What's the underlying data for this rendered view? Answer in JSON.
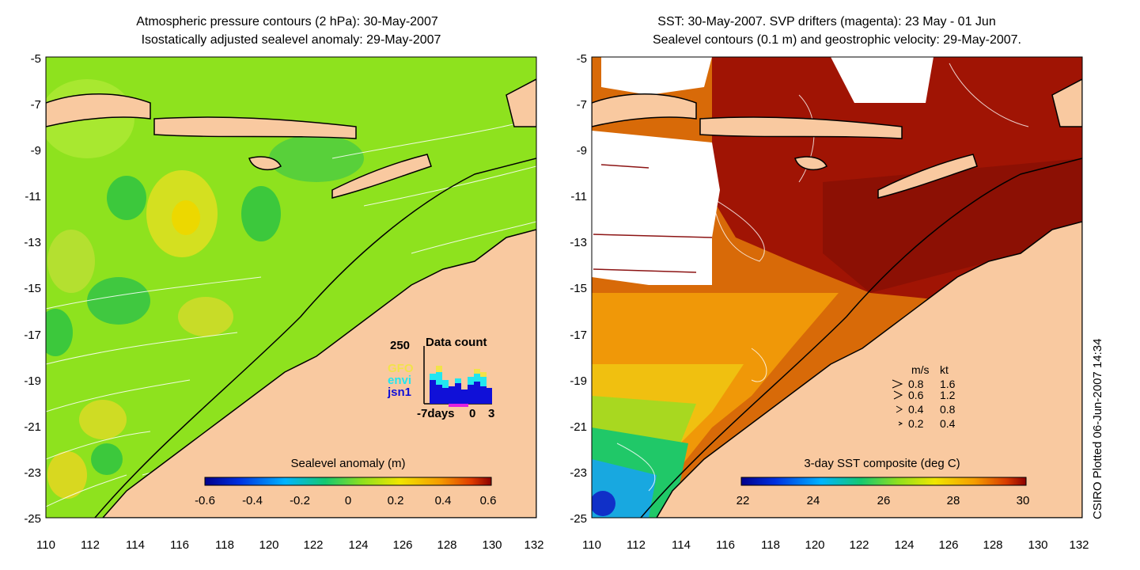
{
  "left_panel": {
    "title_line1": "Atmospheric pressure contours (2 hPa): 30-May-2007",
    "title_line2": "Isostatically adjusted sealevel anomaly: 29-May-2007",
    "colorbar": {
      "label": "Sealevel anomaly (m)",
      "ticks": [
        "-0.6",
        "-0.4",
        "-0.2",
        "0",
        "0.2",
        "0.4",
        "0.6"
      ]
    },
    "data_count": {
      "title": "Data count",
      "max_label": "250",
      "satellites": [
        {
          "name": "GFO",
          "color": "#f2e24a"
        },
        {
          "name": "envi",
          "color": "#22e6f0"
        },
        {
          "name": "jsn1",
          "color": "#1010d8"
        }
      ],
      "axis_left": "-7days",
      "axis_mid": "0",
      "axis_right": "3"
    },
    "colors": {
      "land": "#f9c9a0",
      "ocean": "#7fdc22"
    }
  },
  "right_panel": {
    "title_line1": "SST: 30-May-2007. SVP drifters (magenta): 23 May - 01 Jun",
    "title_line2": "Sealevel contours (0.1 m) and geostrophic velocity: 29-May-2007.",
    "colorbar": {
      "label": "3-day SST composite (deg C)",
      "ticks": [
        "22",
        "24",
        "26",
        "28",
        "30"
      ]
    },
    "velocity_legend": {
      "header_ms": "m/s",
      "header_kt": "kt",
      "rows": [
        {
          "ms": "0.8",
          "kt": "1.6"
        },
        {
          "ms": "0.6",
          "kt": "1.2"
        },
        {
          "ms": "0.4",
          "kt": "0.8"
        },
        {
          "ms": "0.2",
          "kt": "0.4"
        }
      ]
    }
  },
  "axes": {
    "lat_ticks": [
      "-5",
      "-7",
      "-9",
      "-11",
      "-13",
      "-15",
      "-17",
      "-19",
      "-21",
      "-23",
      "-25"
    ],
    "lon_ticks": [
      "110",
      "112",
      "114",
      "116",
      "118",
      "120",
      "122",
      "124",
      "126",
      "128",
      "130",
      "132"
    ]
  },
  "credit": "CSIRO Plotted 06-Jun-2007 14:34"
}
